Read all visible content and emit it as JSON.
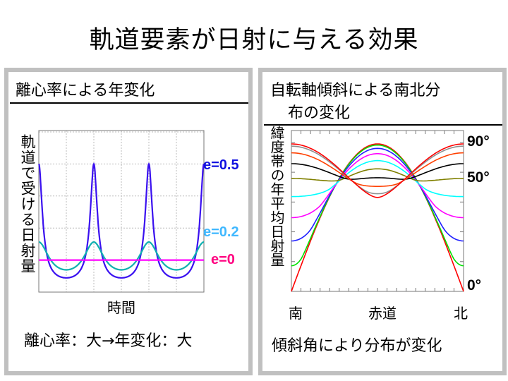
{
  "title": "軌道要素が日射に与える効果",
  "left_panel": {
    "heading": "離心率による年変化",
    "ylabel": "軌道で受ける日射量",
    "xlabel": "時間",
    "footer": "離心率：大→年変化：大"
  },
  "right_panel": {
    "heading_line1": "自転軸傾斜による南北分",
    "heading_line2": "布の変化",
    "ylabel": "緯度帯の年平均日射量",
    "xlabels": [
      "南",
      "赤道",
      "北"
    ],
    "footer": "傾斜角により分布が変化",
    "labels": [
      "90°",
      "50°",
      "0°"
    ]
  },
  "chart_data": [
    {
      "type": "line",
      "xlabel": "時間",
      "ylabel": "軌道で受ける日射量",
      "x_range_orbits": [
        0,
        3
      ],
      "ylim": [
        0,
        5
      ],
      "grid": true,
      "series": [
        {
          "name": "e=0.5",
          "eccentricity": 0.5,
          "max": 4.0,
          "min": 0.444,
          "line_color": "#3a10f0",
          "label_color": "#1010e0"
        },
        {
          "name": "e=0.2",
          "eccentricity": 0.2,
          "max": 1.5625,
          "min": 0.694,
          "line_color": "#10b0b0",
          "label_color": "#40b8ff"
        },
        {
          "name": "e=0",
          "eccentricity": 0,
          "max": 1.0,
          "min": 1.0,
          "line_color": "#ff00ff",
          "label_color": "#ff0080"
        }
      ]
    },
    {
      "type": "line",
      "ylabel": "緯度帯の年平均日射量",
      "xlim": [
        -90,
        90
      ],
      "ylim": [
        0,
        1
      ],
      "grid": false,
      "series": [
        {
          "obliquity": 0,
          "color": "#ff0000"
        },
        {
          "obliquity": 10,
          "color": "#00e000"
        },
        {
          "obliquity": 20,
          "color": "#2020ff"
        },
        {
          "obliquity": 30,
          "color": "#ff00ff"
        },
        {
          "obliquity": 40,
          "color": "#00ffff"
        },
        {
          "obliquity": 50,
          "color": "#808000"
        },
        {
          "obliquity": 60,
          "color": "#000000"
        },
        {
          "obliquity": 70,
          "color": "#ff4000"
        },
        {
          "obliquity": 80,
          "color": "#909090"
        },
        {
          "obliquity": 90,
          "color": "#ff0000"
        }
      ]
    }
  ]
}
